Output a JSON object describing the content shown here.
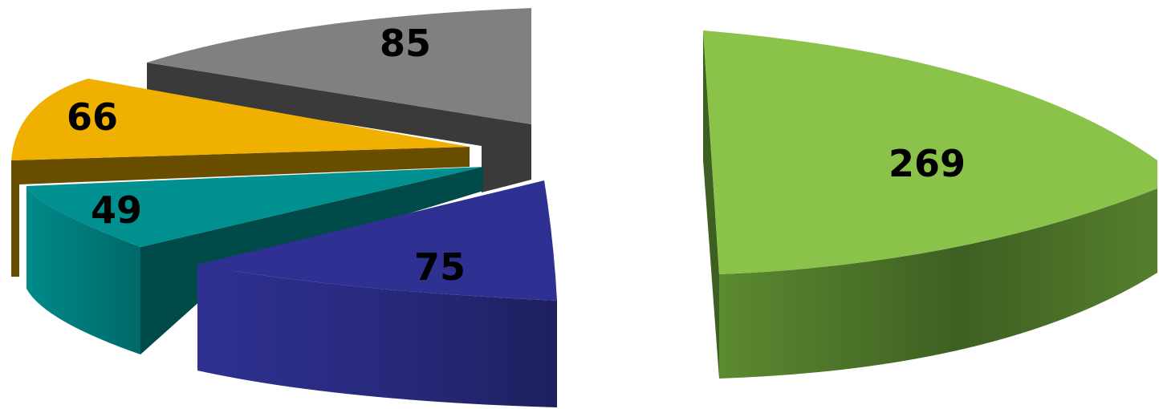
{
  "chart_data": {
    "type": "pie",
    "style": "3d-exploded",
    "title": "",
    "legend": "none",
    "slices": [
      {
        "label": "269",
        "value": 269,
        "color": "#8BC34A",
        "side": "#4F7A2B"
      },
      {
        "label": "75",
        "value": 75,
        "color": "#2E3192",
        "side": "#22246A"
      },
      {
        "label": "49",
        "value": 49,
        "color": "#009090",
        "side": "#004A4A"
      },
      {
        "label": "66",
        "value": 66,
        "color": "#F0B000",
        "side": "#6A4E00"
      },
      {
        "label": "85",
        "value": 85,
        "color": "#808080",
        "side": "#3A3A3A"
      }
    ]
  }
}
